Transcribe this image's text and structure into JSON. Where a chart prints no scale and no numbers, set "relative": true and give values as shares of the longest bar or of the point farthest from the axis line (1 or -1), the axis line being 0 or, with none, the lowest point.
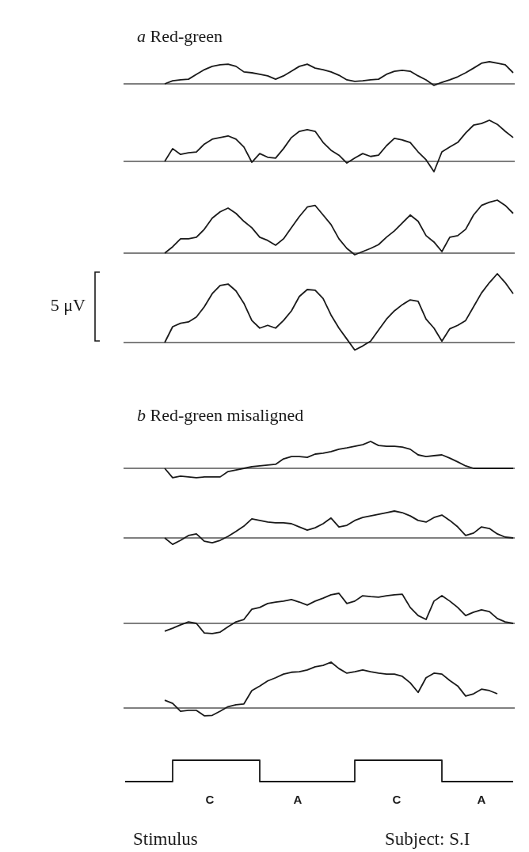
{
  "chart_data": [
    {
      "type": "line",
      "title": "a Red-green",
      "relative": true,
      "color": "#1a1a1a",
      "categories": [
        null,
        null,
        null,
        null,
        null,
        null,
        null,
        null,
        null,
        null,
        null,
        null,
        null,
        null,
        null,
        null,
        null,
        null,
        null,
        null,
        null,
        null,
        null,
        null,
        null,
        null,
        null,
        null,
        null,
        null,
        null,
        null,
        null,
        null,
        null,
        null,
        null,
        null,
        null,
        null,
        null,
        null,
        null,
        null,
        null,
        null,
        null,
        null,
        null,
        null
      ],
      "values": [
        null,
        null,
        null,
        null,
        null,
        0,
        0.14,
        0.18,
        0.21,
        0.43,
        0.64,
        0.79,
        0.86,
        0.89,
        0.79,
        0.54,
        0.5,
        0.43,
        0.36,
        0.21,
        0.36,
        0.57,
        0.79,
        0.89,
        0.71,
        0.64,
        0.54,
        0.39,
        0.18,
        0.11,
        0.14,
        0.18,
        0.21,
        0.43,
        0.57,
        0.61,
        0.57,
        0.36,
        0.18,
        -0.07,
        0.07,
        0.18,
        0.32,
        0.5,
        0.71,
        0.93,
        1,
        0.93,
        0.86,
        0.5
      ]
    },
    {
      "type": "line",
      "relative": true,
      "color": "#1a1a1a",
      "categories": [
        null,
        null,
        null,
        null,
        null,
        null,
        null,
        null,
        null,
        null,
        null,
        null,
        null,
        null,
        null,
        null,
        null,
        null,
        null,
        null,
        null,
        null,
        null,
        null,
        null,
        null,
        null,
        null,
        null,
        null,
        null,
        null,
        null,
        null,
        null,
        null,
        null,
        null,
        null,
        null,
        null,
        null,
        null,
        null,
        null,
        null,
        null,
        null,
        null,
        null
      ],
      "values": [
        null,
        null,
        null,
        null,
        null,
        0,
        0.31,
        0.17,
        0.21,
        0.23,
        0.42,
        0.54,
        0.58,
        0.62,
        0.54,
        0.35,
        -0.02,
        0.19,
        0.1,
        0.08,
        0.31,
        0.58,
        0.73,
        0.77,
        0.73,
        0.46,
        0.27,
        0.15,
        -0.04,
        0.08,
        0.19,
        0.12,
        0.15,
        0.38,
        0.56,
        0.52,
        0.46,
        0.23,
        0.04,
        -0.25,
        0.23,
        0.35,
        0.46,
        0.69,
        0.88,
        0.92,
        1,
        0.9,
        0.73,
        0.58
      ]
    },
    {
      "type": "line",
      "relative": true,
      "color": "#1a1a1a",
      "categories": [
        null,
        null,
        null,
        null,
        null,
        null,
        null,
        null,
        null,
        null,
        null,
        null,
        null,
        null,
        null,
        null,
        null,
        null,
        null,
        null,
        null,
        null,
        null,
        null,
        null,
        null,
        null,
        null,
        null,
        null,
        null,
        null,
        null,
        null,
        null,
        null,
        null,
        null,
        null,
        null,
        null,
        null,
        null,
        null,
        null,
        null,
        null,
        null,
        null,
        null
      ],
      "values": [
        null,
        null,
        null,
        null,
        null,
        0,
        0.12,
        0.27,
        0.27,
        0.3,
        0.45,
        0.66,
        0.78,
        0.85,
        0.75,
        0.6,
        0.48,
        0.3,
        0.24,
        0.15,
        0.27,
        0.48,
        0.69,
        0.87,
        0.9,
        0.72,
        0.54,
        0.27,
        0.09,
        -0.03,
        0.03,
        0.09,
        0.16,
        0.3,
        0.42,
        0.57,
        0.72,
        0.6,
        0.33,
        0.21,
        0.03,
        0.3,
        0.33,
        0.45,
        0.72,
        0.9,
        0.96,
        1,
        0.9,
        0.75
      ]
    },
    {
      "type": "line",
      "relative": true,
      "color": "#1a1a1a",
      "annotations": [
        "5 μV"
      ],
      "categories": [
        null,
        null,
        null,
        null,
        null,
        null,
        null,
        null,
        null,
        null,
        null,
        null,
        null,
        null,
        null,
        null,
        null,
        null,
        null,
        null,
        null,
        null,
        null,
        null,
        null,
        null,
        null,
        null,
        null,
        null,
        null,
        null,
        null,
        null,
        null,
        null,
        null,
        null,
        null,
        null,
        null,
        null,
        null,
        null,
        null,
        null,
        null,
        null,
        null,
        null
      ],
      "values": [
        null,
        null,
        null,
        null,
        null,
        0,
        0.23,
        0.28,
        0.3,
        0.37,
        0.52,
        0.71,
        0.83,
        0.85,
        0.75,
        0.57,
        0.32,
        0.21,
        0.25,
        0.21,
        0.32,
        0.46,
        0.67,
        0.77,
        0.76,
        0.64,
        0.4,
        0.21,
        0.05,
        -0.11,
        -0.05,
        0.02,
        0.18,
        0.34,
        0.46,
        0.55,
        0.62,
        0.6,
        0.34,
        0.21,
        0.02,
        0.2,
        0.25,
        0.32,
        0.52,
        0.72,
        0.87,
        1,
        0.87,
        0.71
      ]
    },
    {
      "type": "line",
      "title": "b Red-green misaligned",
      "relative": true,
      "color": "#1a1a1a",
      "categories": [
        null,
        null,
        null,
        null,
        null,
        null,
        null,
        null,
        null,
        null,
        null,
        null,
        null,
        null,
        null,
        null,
        null,
        null,
        null,
        null,
        null,
        null,
        null,
        null,
        null,
        null,
        null,
        null,
        null,
        null,
        null,
        null,
        null,
        null,
        null,
        null,
        null,
        null,
        null,
        null,
        null,
        null,
        null,
        null,
        null,
        null,
        null,
        null,
        null,
        null
      ],
      "values": [
        null,
        null,
        null,
        null,
        null,
        0,
        -0.35,
        -0.29,
        -0.32,
        -0.35,
        -0.32,
        -0.32,
        -0.32,
        -0.12,
        -0.06,
        0,
        0.06,
        0.09,
        0.12,
        0.15,
        0.35,
        0.44,
        0.44,
        0.41,
        0.53,
        0.56,
        0.62,
        0.71,
        0.76,
        0.82,
        0.88,
        1,
        0.85,
        0.82,
        0.82,
        0.79,
        0.71,
        0.5,
        0.44,
        0.47,
        0.5,
        0.38,
        0.24,
        0.09,
        0,
        0,
        0,
        0,
        0,
        0
      ]
    },
    {
      "type": "line",
      "relative": true,
      "color": "#1a1a1a",
      "categories": [
        null,
        null,
        null,
        null,
        null,
        null,
        null,
        null,
        null,
        null,
        null,
        null,
        null,
        null,
        null,
        null,
        null,
        null,
        null,
        null,
        null,
        null,
        null,
        null,
        null,
        null,
        null,
        null,
        null,
        null,
        null,
        null,
        null,
        null,
        null,
        null,
        null,
        null,
        null,
        null,
        null,
        null,
        null,
        null,
        null,
        null,
        null,
        null,
        null,
        null
      ],
      "values": [
        null,
        null,
        null,
        null,
        null,
        0,
        -0.24,
        -0.09,
        0.09,
        0.15,
        -0.12,
        -0.18,
        -0.09,
        0.06,
        0.24,
        0.44,
        0.71,
        0.65,
        0.59,
        0.56,
        0.56,
        0.53,
        0.41,
        0.29,
        0.38,
        0.53,
        0.74,
        0.41,
        0.47,
        0.65,
        0.76,
        0.82,
        0.88,
        0.94,
        1,
        0.94,
        0.82,
        0.65,
        0.59,
        0.76,
        0.85,
        0.65,
        0.41,
        0.09,
        0.18,
        0.41,
        0.35,
        0.15,
        0.03,
        0
      ]
    },
    {
      "type": "line",
      "relative": true,
      "color": "#1a1a1a",
      "categories": [
        null,
        null,
        null,
        null,
        null,
        null,
        null,
        null,
        null,
        null,
        null,
        null,
        null,
        null,
        null,
        null,
        null,
        null,
        null,
        null,
        null,
        null,
        null,
        null,
        null,
        null,
        null,
        null,
        null,
        null,
        null,
        null,
        null,
        null,
        null,
        null,
        null,
        null,
        null,
        null,
        null,
        null,
        null,
        null,
        null,
        null,
        null,
        null,
        null,
        null
      ],
      "values": [
        null,
        null,
        null,
        null,
        null,
        -0.26,
        -0.16,
        -0.05,
        0.05,
        0,
        -0.32,
        -0.34,
        -0.29,
        -0.11,
        0.05,
        0.13,
        0.47,
        0.53,
        0.66,
        0.71,
        0.74,
        0.79,
        0.71,
        0.61,
        0.74,
        0.84,
        0.95,
        1,
        0.66,
        0.74,
        0.92,
        0.89,
        0.87,
        0.92,
        0.95,
        0.97,
        0.53,
        0.26,
        0.13,
        0.74,
        0.92,
        0.74,
        0.53,
        0.26,
        0.37,
        0.45,
        0.39,
        0.16,
        0.05,
        0
      ]
    },
    {
      "type": "line",
      "relative": true,
      "color": "#1a1a1a",
      "categories": [
        null,
        null,
        null,
        null,
        null,
        null,
        null,
        null,
        null,
        null,
        null,
        null,
        null,
        null,
        null,
        null,
        null,
        null,
        null,
        null,
        null,
        null,
        null,
        null,
        null,
        null,
        null,
        null,
        null,
        null,
        null,
        null,
        null,
        null,
        null,
        null,
        null,
        null,
        null,
        null,
        null,
        null,
        null,
        null,
        null,
        null,
        null,
        null,
        null,
        null
      ],
      "values": [
        null,
        null,
        null,
        null,
        null,
        0.17,
        0.1,
        -0.07,
        -0.05,
        -0.05,
        -0.17,
        -0.16,
        -0.07,
        0.03,
        0.07,
        0.09,
        0.38,
        0.48,
        0.59,
        0.66,
        0.74,
        0.78,
        0.79,
        0.83,
        0.9,
        0.93,
        1,
        0.86,
        0.76,
        0.79,
        0.83,
        0.79,
        0.76,
        0.74,
        0.74,
        0.69,
        0.55,
        0.34,
        0.66,
        0.76,
        0.74,
        0.6,
        0.48,
        0.26,
        0.31,
        0.41,
        0.38,
        0.31,
        null,
        null
      ]
    },
    {
      "type": "step",
      "relative": true,
      "color": "#1a1a1a",
      "annotations": [
        "C",
        "A",
        "C",
        "A",
        "Stimulus",
        "Subject: S.I"
      ],
      "categories": [
        null,
        null,
        null,
        null,
        null,
        null,
        null,
        null,
        null,
        null,
        null,
        null,
        null,
        null,
        null,
        null,
        null,
        null,
        null,
        null,
        null,
        null,
        null,
        null,
        null,
        null,
        null,
        null,
        null,
        null,
        null,
        null,
        null,
        null,
        null,
        null,
        null,
        null,
        null,
        null,
        null,
        null,
        null,
        null,
        null,
        null,
        null,
        null,
        null,
        null
      ],
      "values": [
        0,
        0,
        0,
        0,
        0,
        0,
        1,
        1,
        1,
        1,
        1,
        1,
        1,
        1,
        1,
        1,
        1,
        0,
        0,
        0,
        0,
        0,
        0,
        0,
        0,
        0,
        0,
        0,
        0,
        1,
        1,
        1,
        1,
        1,
        1,
        1,
        1,
        1,
        1,
        1,
        0,
        0,
        0,
        0,
        0,
        0,
        0,
        0,
        0,
        0
      ]
    }
  ]
}
